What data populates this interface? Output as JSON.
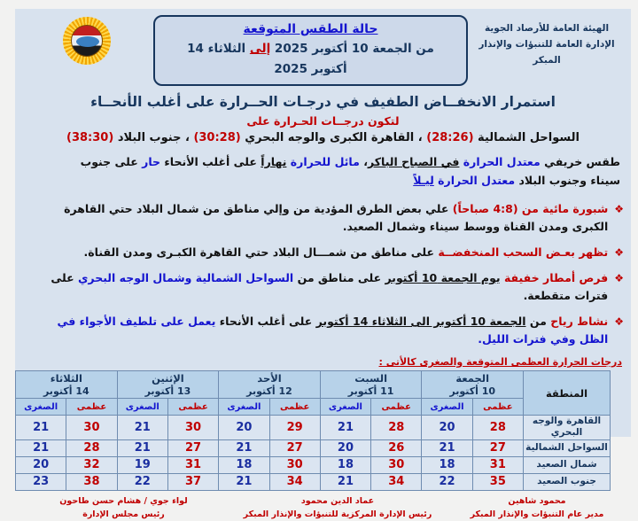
{
  "org": {
    "line1": "الهيئة العامة للأرصاد الجوية",
    "line2": "الإدارة العامة للتنبؤات والإنذار المبكر"
  },
  "title_box": {
    "title": "حالة الطقس المتوقعة",
    "subtitle_segments": [
      {
        "t": "من الجمعة 10 أكتوبر 2025 ",
        "s": "navy"
      },
      {
        "t": "إلى",
        "s": "red u"
      },
      {
        "t": " الثلاثاء 14 أكتوبر 2025",
        "s": "navy"
      }
    ]
  },
  "logo": {
    "name": "egyptian-meteorological-authority-emblem"
  },
  "headline": "استمرار الانخفــاض الطفيف في درجـات الحــرارة على أغلب الأنحــاء",
  "sub_headline": "لتكون درجــات الحـرارة على",
  "temps_line_segments": [
    {
      "t": "السواحل الشمالية ",
      "s": ""
    },
    {
      "t": "(28:26)",
      "s": "red"
    },
    {
      "t": " ، القاهرة الكبرى والوجه البحري ",
      "s": ""
    },
    {
      "t": "(30:28)",
      "s": "red"
    },
    {
      "t": " ، جنوب البلاد ",
      "s": ""
    },
    {
      "t": "(38:30)",
      "s": "red"
    }
  ],
  "intro_segments": [
    {
      "t": "طقس خريفي ",
      "s": ""
    },
    {
      "t": "معتدل الحرارة ",
      "s": "blue"
    },
    {
      "t": "في الصباح الباكر",
      "s": "u"
    },
    {
      "t": "، ",
      "s": ""
    },
    {
      "t": "مائل للحرارة ",
      "s": "blue"
    },
    {
      "t": "نهاراً",
      "s": "u"
    },
    {
      "t": " على أغلب الأنحاء ",
      "s": ""
    },
    {
      "t": "حار",
      "s": "blue"
    },
    {
      "t": " على جنوب سيناء وجنوب البلاد ",
      "s": ""
    },
    {
      "t": "معتدل الحرارة ",
      "s": "blue"
    },
    {
      "t": "ليـلاً",
      "s": "blue u"
    }
  ],
  "bullet_icon": "❖",
  "bullets": [
    {
      "segments": [
        {
          "t": "شبورة مائية من (4:8 صباحاً)",
          "s": "red"
        },
        {
          "t": " علي بعض الطرق المؤدية من وإلي مناطق من شمال البلاد حتي القاهرة الكبرى ومدن القناة ووسط سيناء وشمال الصعيد.",
          "s": ""
        }
      ]
    },
    {
      "segments": [
        {
          "t": "تظهر بعـض السحب المنخفضــة",
          "s": "red"
        },
        {
          "t": " على مناطق من شمـــال البلاد حتي القاهرة الكبـرى ومدن القناة.",
          "s": ""
        }
      ]
    },
    {
      "segments": [
        {
          "t": "فرص أمطار خفيفة ",
          "s": "red"
        },
        {
          "t": "يوم الجمعة 10 أكتوبر",
          "s": "u"
        },
        {
          "t": " على مناطق من ",
          "s": ""
        },
        {
          "t": "السواحل الشمالية وشمال الوجه البحري",
          "s": "blue"
        },
        {
          "t": " على فترات متقطعة.",
          "s": ""
        }
      ]
    },
    {
      "segments": [
        {
          "t": "نشاط رياح",
          "s": "red"
        },
        {
          "t": " من ",
          "s": ""
        },
        {
          "t": "الجمعة 10 أكتوبر الى الثلاثاء 14 أكتوبر",
          "s": "u"
        },
        {
          "t": " على أغلب الأنحاء ",
          "s": ""
        },
        {
          "t": "يعمل على تلطيف الأجواء في الظل وفي فترات الليل.",
          "s": "blue"
        }
      ]
    }
  ],
  "table_caption": "درجات الحرارة العظمى المتوقعة والصغرى كالأتى :",
  "chart_data": {
    "type": "table",
    "title": "درجات الحرارة العظمى المتوقعة والصغرى",
    "region_header": "المنطقة",
    "max_label": "عظمى",
    "min_label": "الصغرى",
    "days": [
      {
        "name": "الجمعة",
        "date": "10 أكتوبر"
      },
      {
        "name": "السبت",
        "date": "11 أكتوبر"
      },
      {
        "name": "الأحد",
        "date": "12 أكتوبر"
      },
      {
        "name": "الإثنين",
        "date": "13 أكتوبر"
      },
      {
        "name": "الثلاثاء",
        "date": "14 أكتوبر"
      }
    ],
    "rows": [
      {
        "region": "القاهرة والوجه البحري",
        "temps": [
          [
            28,
            20
          ],
          [
            28,
            21
          ],
          [
            29,
            20
          ],
          [
            30,
            21
          ],
          [
            30,
            21
          ]
        ]
      },
      {
        "region": "السواحل الشمالية",
        "temps": [
          [
            27,
            21
          ],
          [
            26,
            20
          ],
          [
            27,
            21
          ],
          [
            27,
            21
          ],
          [
            28,
            21
          ]
        ]
      },
      {
        "region": "شمال الصعيد",
        "temps": [
          [
            31,
            18
          ],
          [
            30,
            18
          ],
          [
            30,
            18
          ],
          [
            31,
            19
          ],
          [
            32,
            20
          ]
        ]
      },
      {
        "region": "جنوب الصعيد",
        "temps": [
          [
            35,
            22
          ],
          [
            34,
            21
          ],
          [
            34,
            21
          ],
          [
            37,
            22
          ],
          [
            38,
            23
          ]
        ]
      }
    ]
  },
  "signatures": [
    {
      "name": "محمود شاهين",
      "title": "مدير عام التنبؤات والإنذار المبكر"
    },
    {
      "name": "عماد الدين محمود",
      "title": "رئيس الإدارة المركزية للتنبؤات والإنذار المبكر"
    },
    {
      "name": "لواء جوي / هشام حسن طاحون",
      "title": "رئيس مجلس الإدارة"
    }
  ],
  "colors": {
    "navy": "#17365d",
    "blue": "#1414cf",
    "red": "#c00000",
    "page_bg": "#d8e2ee",
    "table_header_bg": "#b7d2e9"
  }
}
